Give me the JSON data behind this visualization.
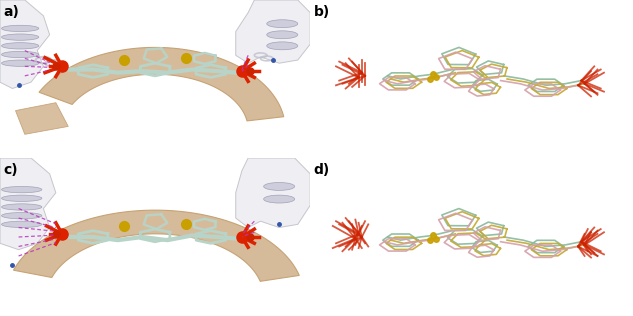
{
  "figure_width": 6.33,
  "figure_height": 3.16,
  "dpi": 100,
  "background_color": "#ffffff",
  "panels": [
    "a)",
    "b)",
    "c)",
    "d)"
  ],
  "label_fontsize": 10,
  "label_color": "#000000",
  "tan_ribbon": "#d4b896",
  "tan_ribbon_edge": "#c4a070",
  "gray_protein": "#d8d8e0",
  "gray_protein_edge": "#b0b0b8",
  "white_protein": "#ededf2",
  "white_protein_edge": "#c0c0c8",
  "helix_color": "#d0d0dc",
  "ligand_color": "#b8d4c8",
  "ligand_edge": "#90b0a0",
  "phosphate_red": "#cc2200",
  "phosphate_orange": "#dd5500",
  "oxygen_red": "#dd2200",
  "sulfur_yellow": "#c8a000",
  "hbond_color": "#bb33bb",
  "nitrogen_blue": "#3355aa",
  "overlay_green": "#8ab89a",
  "overlay_yellow": "#c4a830",
  "overlay_pink": "#d4a0a8",
  "overlay_gray": "#b8b8b0"
}
